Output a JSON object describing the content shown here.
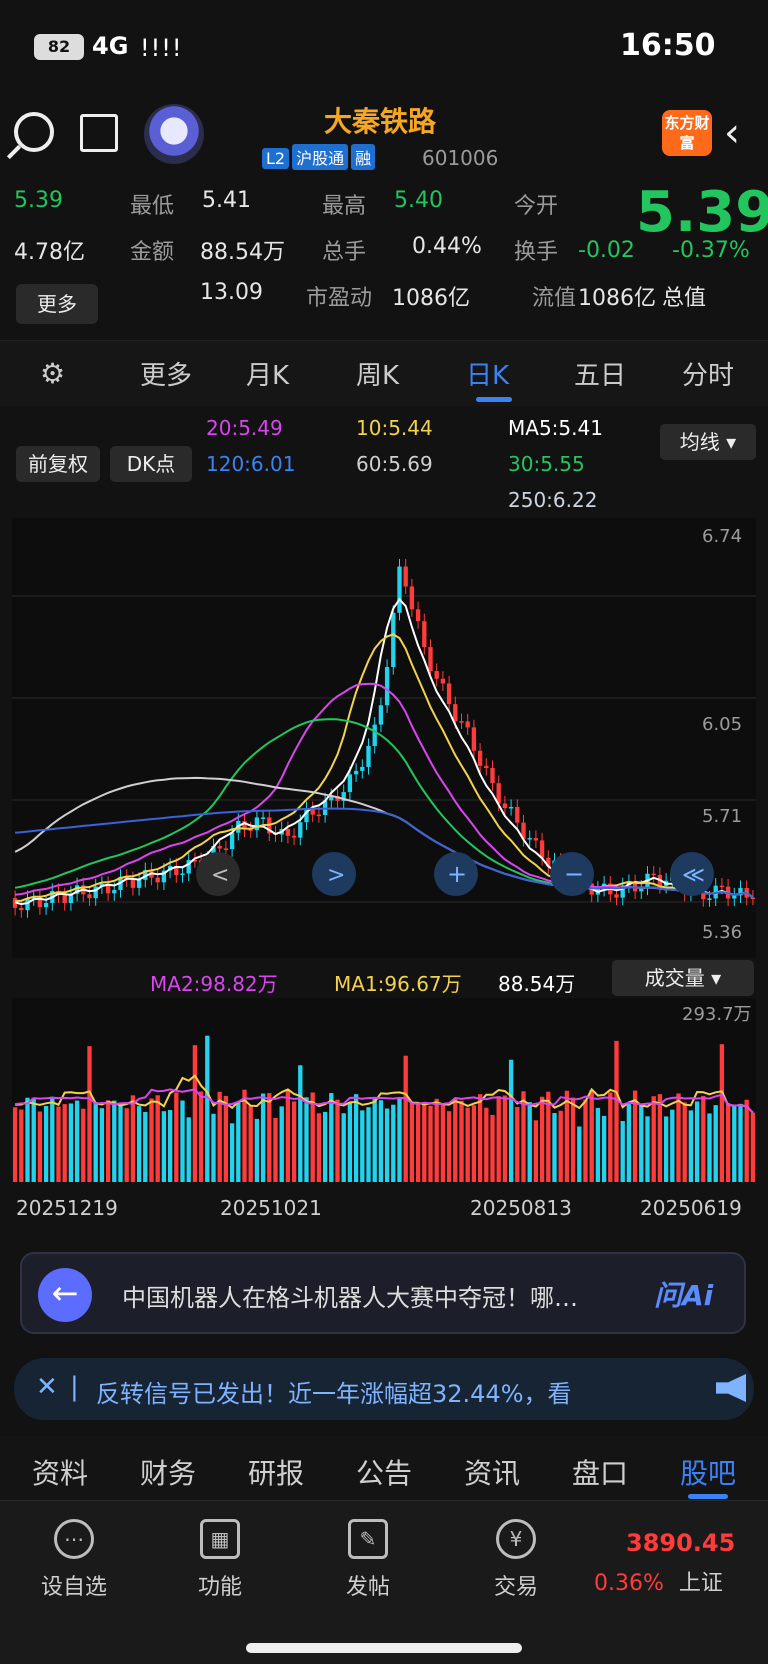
{
  "status": {
    "time": "16:50",
    "battery": "82",
    "network": "4G",
    "signal": "!!!!"
  },
  "header": {
    "stock_name": "大秦铁路",
    "stock_code": "601006",
    "tags": [
      "L2",
      "沪股通",
      "融"
    ],
    "app_logo": "东方财富"
  },
  "quote": {
    "price": "5.39",
    "change": "-0.02",
    "change_pct": "-0.37%",
    "open_label": "今开",
    "open": "5.40",
    "high_label": "最高",
    "high": "5.41",
    "low_label": "最低",
    "low": "5.39",
    "turnover_label": "换手",
    "turnover": "0.44%",
    "volume_label": "总手",
    "volume": "88.54万",
    "amount_label": "金额",
    "amount": "4.78亿",
    "mktcap_label": "总值",
    "mktcap": "1086亿",
    "float_label": "流值",
    "float_cap": "1086亿",
    "pe_label": "市盈动",
    "pe": "13.09",
    "more_button": "更多"
  },
  "tabs": [
    {
      "label": "分时"
    },
    {
      "label": "五日"
    },
    {
      "label": "日K"
    },
    {
      "label": "周K"
    },
    {
      "label": "月K"
    },
    {
      "label": "更多"
    }
  ],
  "ma_legend": {
    "selector": "均线",
    "ma5": "MA5:5.41",
    "ma10": "10:5.44",
    "ma20": "20:5.49",
    "ma30": "30:5.55",
    "ma60": "60:5.69",
    "ma120": "120:6.01",
    "ma250": "250:6.22",
    "dk_button": "DK点",
    "fq_button": "前复权"
  },
  "chart_data": {
    "type": "candlestick",
    "y_ticks": [
      "6.74",
      "6.05",
      "5.71",
      "5.36"
    ],
    "x_ticks": [
      "20250619",
      "20250813",
      "20251021",
      "20251219"
    ],
    "volume_max_label": "293.7万",
    "close_path_hint": [
      5.42,
      5.45,
      5.43,
      5.48,
      5.5,
      5.46,
      5.44,
      5.47,
      5.52,
      5.6,
      5.72,
      5.85,
      6.05,
      6.2,
      6.4,
      6.74,
      6.1,
      5.9,
      5.8,
      5.75,
      5.65,
      5.72,
      5.7,
      5.6,
      5.55,
      5.52,
      5.5,
      5.48,
      5.45,
      5.44,
      5.42,
      5.4,
      5.39
    ],
    "volume_legend": {
      "selector": "成交量",
      "vol": "88.54万",
      "ma1": "MA1:96.67万",
      "ma2": "MA2:98.82万"
    }
  },
  "nav_buttons": [
    "≪",
    "−",
    "+",
    ">",
    "<"
  ],
  "ai_bar": {
    "tag": "问Ai",
    "message": "中国机器人在格斗机器人大赛中夺冠！哪…"
  },
  "notice_bar": {
    "message": "反转信号已发出！近一年涨幅超32.44%，看"
  },
  "section_tabs": [
    "股吧",
    "盘口",
    "资讯",
    "公告",
    "研报",
    "财务",
    "资料"
  ],
  "bottom_nav": {
    "index_name": "上证",
    "index_value": "3890.45",
    "index_change": "0.36%",
    "items": [
      "交易",
      "发帖",
      "功能",
      "设自选"
    ]
  },
  "colors": {
    "up": "#ff3b3b",
    "down": "#22d3ee",
    "accent": "#3b82f6",
    "price_down": "#22c55e"
  }
}
